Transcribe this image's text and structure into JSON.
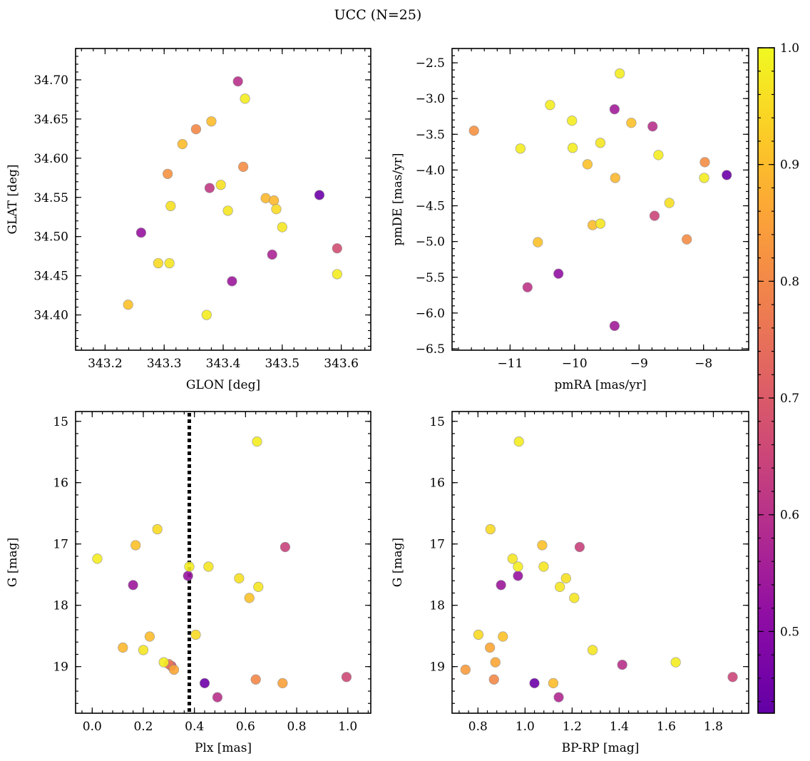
{
  "figure": {
    "suptitle": "UCC (N=25)"
  },
  "colorbar": {
    "colormap": "plasma",
    "range": [
      0.43,
      1.0
    ],
    "ticks": [
      0.5,
      0.6,
      0.7,
      0.8,
      0.9,
      1.0
    ],
    "tick_labels": [
      "0.5",
      "0.6",
      "0.7",
      "0.8",
      "0.9",
      "1.0"
    ]
  },
  "chart_data": [
    {
      "type": "scatter",
      "xlabel": "GLON [deg]",
      "ylabel": "GLAT [deg]",
      "xlim": [
        343.15,
        343.65
      ],
      "ylim": [
        34.355,
        34.74
      ],
      "xticks": [
        343.2,
        343.3,
        343.4,
        343.5,
        343.6
      ],
      "xtick_labels": [
        "343.2",
        "343.3",
        "343.4",
        "343.5",
        "343.6"
      ],
      "yticks": [
        34.4,
        34.45,
        34.5,
        34.55,
        34.6,
        34.65,
        34.7
      ],
      "ytick_labels": [
        "34.40",
        "34.45",
        "34.50",
        "34.55",
        "34.60",
        "34.65",
        "34.70"
      ],
      "x": [
        343.425,
        343.437,
        343.38,
        343.354,
        343.331,
        343.306,
        343.434,
        343.396,
        343.377,
        343.472,
        343.486,
        343.49,
        343.563,
        343.311,
        343.408,
        343.5,
        343.261,
        343.593,
        343.483,
        343.29,
        343.309,
        343.593,
        343.415,
        343.239,
        343.372
      ],
      "y": [
        34.698,
        34.676,
        34.647,
        34.637,
        34.618,
        34.58,
        34.589,
        34.566,
        34.562,
        34.549,
        34.546,
        34.535,
        34.553,
        34.539,
        34.533,
        34.512,
        34.505,
        34.485,
        34.477,
        34.466,
        34.466,
        34.452,
        34.443,
        34.413,
        34.4
      ],
      "c": [
        0.6,
        0.98,
        0.9,
        0.8,
        0.9,
        0.82,
        0.81,
        0.96,
        0.62,
        0.89,
        0.89,
        0.95,
        0.45,
        0.96,
        0.97,
        0.97,
        0.53,
        0.67,
        0.57,
        0.95,
        0.97,
        0.98,
        0.54,
        0.91,
        0.98
      ]
    },
    {
      "type": "scatter",
      "xlabel": "pmRA [mas/yr]",
      "ylabel": "pmDE [mas/yr]",
      "xlim": [
        -11.9,
        -7.3
      ],
      "ylim": [
        -6.52,
        -2.3
      ],
      "xticks": [
        -11,
        -10,
        -9,
        -8
      ],
      "xtick_labels": [
        "−11",
        "−10",
        "−9",
        "−8"
      ],
      "yticks": [
        -6.5,
        -6.0,
        -5.5,
        -5.0,
        -4.5,
        -4.0,
        -3.5,
        -3.0,
        -2.5
      ],
      "ytick_labels": [
        "−6.5",
        "−6.0",
        "−5.5",
        "−5.0",
        "−4.5",
        "−4.0",
        "−3.5",
        "−3.0",
        "−2.5"
      ],
      "x": [
        -9.3,
        -10.38,
        -9.38,
        -10.04,
        -9.12,
        -8.79,
        -11.56,
        -10.84,
        -9.6,
        -10.03,
        -8.7,
        -9.8,
        -7.98,
        -7.64,
        -9.37,
        -7.99,
        -8.53,
        -9.6,
        -9.72,
        -8.76,
        -10.57,
        -8.26,
        -10.25,
        -10.73,
        -9.38
      ],
      "y": [
        -2.65,
        -3.09,
        -3.15,
        -3.31,
        -3.34,
        -3.39,
        -3.45,
        -3.7,
        -3.62,
        -3.69,
        -3.79,
        -3.92,
        -3.89,
        -4.07,
        -4.11,
        -4.11,
        -4.46,
        -4.75,
        -4.77,
        -4.64,
        -5.01,
        -4.97,
        -5.45,
        -5.64,
        -6.18
      ],
      "c": [
        0.98,
        0.98,
        0.55,
        0.98,
        0.91,
        0.6,
        0.82,
        0.98,
        0.97,
        0.98,
        0.98,
        0.91,
        0.81,
        0.45,
        0.89,
        0.98,
        0.96,
        0.97,
        0.9,
        0.65,
        0.91,
        0.81,
        0.52,
        0.61,
        0.55
      ]
    },
    {
      "type": "scatter",
      "xlabel": "Plx [mas]",
      "ylabel": "G [mag]",
      "xlim": [
        -0.065,
        1.09
      ],
      "ylim": [
        19.76,
        14.84
      ],
      "y_inverted": true,
      "xticks": [
        0.0,
        0.2,
        0.4,
        0.6,
        0.8,
        1.0
      ],
      "xtick_labels": [
        "0.0",
        "0.2",
        "0.4",
        "0.6",
        "0.8",
        "1.0"
      ],
      "yticks": [
        15,
        16,
        17,
        18,
        19
      ],
      "ytick_labels": [
        "15",
        "16",
        "17",
        "18",
        "19"
      ],
      "vline": 0.38,
      "x": [
        0.645,
        0.255,
        0.02,
        0.17,
        0.755,
        0.455,
        0.38,
        0.375,
        0.575,
        0.65,
        0.16,
        0.615,
        0.405,
        0.225,
        0.12,
        0.2,
        0.28,
        0.3,
        0.31,
        0.32,
        0.995,
        0.64,
        0.745,
        0.44,
        0.49
      ],
      "y": [
        15.33,
        16.76,
        17.24,
        17.02,
        17.05,
        17.37,
        17.37,
        17.52,
        17.56,
        17.7,
        17.67,
        17.88,
        18.48,
        18.51,
        18.69,
        18.73,
        18.93,
        18.96,
        18.99,
        19.05,
        19.17,
        19.21,
        19.27,
        19.27,
        19.5
      ],
      "c": [
        0.98,
        0.95,
        0.98,
        0.91,
        0.64,
        0.97,
        0.98,
        0.53,
        0.96,
        0.97,
        0.54,
        0.91,
        0.95,
        0.9,
        0.89,
        0.97,
        0.98,
        0.76,
        0.65,
        0.86,
        0.66,
        0.8,
        0.85,
        0.45,
        0.6
      ]
    },
    {
      "type": "scatter",
      "xlabel": "BP-RP [mag]",
      "ylabel": "G [mag]",
      "xlim": [
        0.69,
        1.95
      ],
      "ylim": [
        19.76,
        14.84
      ],
      "y_inverted": true,
      "xticks": [
        0.8,
        1.0,
        1.2,
        1.4,
        1.6,
        1.8
      ],
      "xtick_labels": [
        "0.8",
        "1.0",
        "1.2",
        "1.4",
        "1.6",
        "1.8"
      ],
      "yticks": [
        15,
        16,
        17,
        18,
        19
      ],
      "ytick_labels": [
        "15",
        "16",
        "17",
        "18",
        "19"
      ],
      "x": [
        0.974,
        0.853,
        0.947,
        1.073,
        1.232,
        0.97,
        1.079,
        0.97,
        1.174,
        1.148,
        0.898,
        1.209,
        0.802,
        0.906,
        0.851,
        1.287,
        0.874,
        1.64,
        1.413,
        0.747,
        1.882,
        0.868,
        1.04,
        1.12,
        1.143
      ],
      "y": [
        15.33,
        16.76,
        17.24,
        17.02,
        17.05,
        17.37,
        17.37,
        17.52,
        17.56,
        17.7,
        17.67,
        17.88,
        18.48,
        18.51,
        18.69,
        18.73,
        18.93,
        18.93,
        18.97,
        19.05,
        19.17,
        19.21,
        19.27,
        19.27,
        19.5
      ],
      "c": [
        0.98,
        0.95,
        0.97,
        0.91,
        0.64,
        0.98,
        0.97,
        0.53,
        0.96,
        0.97,
        0.54,
        0.97,
        0.95,
        0.91,
        0.86,
        0.97,
        0.86,
        0.98,
        0.6,
        0.84,
        0.65,
        0.8,
        0.45,
        0.9,
        0.58
      ]
    }
  ]
}
